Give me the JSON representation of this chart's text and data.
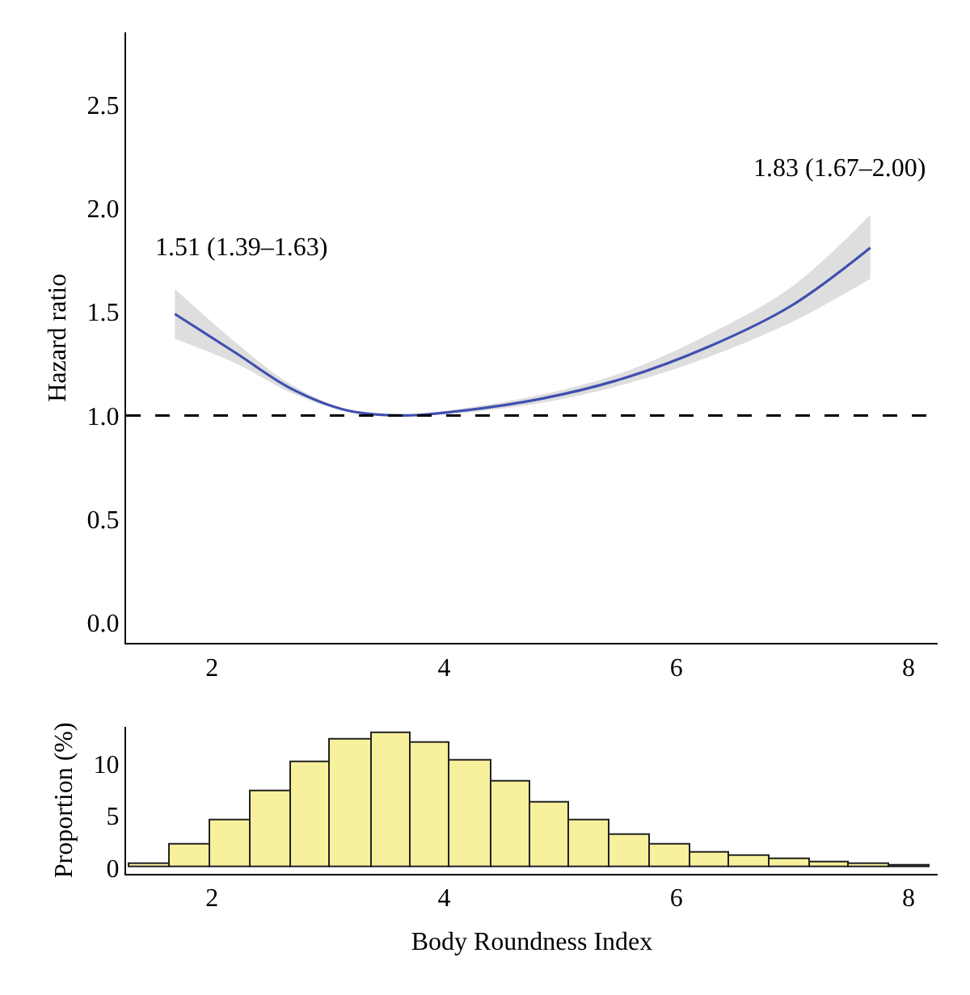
{
  "chart_data": [
    {
      "type": "line",
      "ylabel": "Hazard ratio",
      "xlim": [
        1.26,
        8.25
      ],
      "ylim": [
        -0.1,
        2.85
      ],
      "xticks": [
        2,
        4,
        6,
        8
      ],
      "yticks": [
        {
          "value": 0,
          "label": "0.0"
        },
        {
          "value": 0.5,
          "label": "0.5"
        },
        {
          "value": 1,
          "label": "1.0"
        },
        {
          "value": 1.5,
          "label": "1.5"
        },
        {
          "value": 2,
          "label": "2.0"
        },
        {
          "value": 2.5,
          "label": "2.5"
        }
      ],
      "x": [
        1.68,
        2.21,
        2.68,
        3.16,
        3.64,
        4.11,
        4.83,
        5.55,
        6.27,
        6.99,
        7.67
      ],
      "series": [
        {
          "color": "#3f4fb0",
          "values": [
            1.49,
            1.3,
            1.13,
            1.025,
            1.0,
            1.02,
            1.08,
            1.18,
            1.33,
            1.53,
            1.81
          ],
          "lower": [
            1.37,
            1.25,
            1.11,
            1.02,
            1.0,
            1.01,
            1.06,
            1.15,
            1.28,
            1.45,
            1.66
          ],
          "upper": [
            1.61,
            1.35,
            1.15,
            1.03,
            1.0,
            1.03,
            1.1,
            1.21,
            1.39,
            1.62,
            1.97
          ]
        }
      ],
      "ref_lines": [
        {
          "axis": "y",
          "value": 1,
          "color": "#000000",
          "line_style": "dashed"
        }
      ],
      "annotations": [
        {
          "text": "1.51 (1.39–1.63)",
          "x": 1.68,
          "y": 1.49
        },
        {
          "text": "1.83 (1.67–2.00)",
          "x": 7.67,
          "y": 1.81
        }
      ],
      "line_style": "solid"
    },
    {
      "type": "histogram",
      "xlabel": "Body Roundness Index",
      "ylabel": "Proportion (%)",
      "xlim": [
        1.26,
        8.25
      ],
      "ylim": [
        -0.6,
        13.6
      ],
      "xticks": [
        2,
        4,
        6,
        8
      ],
      "yticks": [
        0,
        5,
        10
      ],
      "bins": [
        1.29,
        1.64,
        1.99,
        2.33,
        2.68,
        3.02,
        3.37,
        3.71,
        4.05,
        4.4,
        4.74,
        5.08,
        5.43,
        5.77,
        6.12,
        6.46,
        6.8,
        7.15,
        7.49,
        7.83,
        8.18
      ],
      "values": [
        0.3,
        2.3,
        4.6,
        7.4,
        10.1,
        12.3,
        13.0,
        12.1,
        10.4,
        8.3,
        6.3,
        4.5,
        3.2,
        2.3,
        1.5,
        1.1,
        0.8,
        0.5,
        0.4,
        0.2
      ],
      "color": "#f7f09c"
    }
  ]
}
